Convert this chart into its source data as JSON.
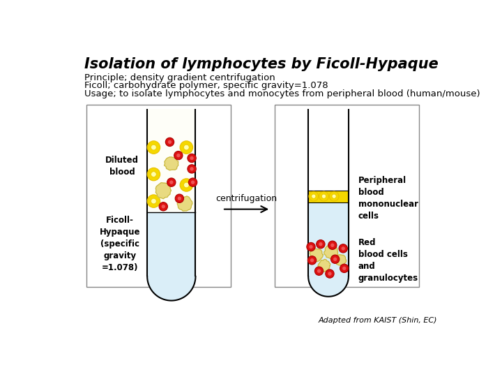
{
  "title": "Isolation of lymphocytes by Ficoll-Hypaque",
  "line1": "Principle; density gradient centrifugation",
  "line2": "Ficoll; carbohydrate polymer, specific gravity=1.078",
  "line3": "Usage; to isolate lymphocytes and monocytes from peripheral blood (human/mouse)",
  "label_left_top": "Diluted\nblood",
  "label_left_bottom": "Ficoll-\nHypaque\n(specific\ngravity\n=1.078)",
  "label_arrow": "centrifugation",
  "label_right_top": "Peripheral\nblood\nmononuclear\ncells",
  "label_right_bottom": "Red\nblood cells\nand\ngranulocytes",
  "footer": "Adapted from KAIST (Shin, EC)",
  "bg_color": "#ffffff",
  "ficoll_color": "#daeef8",
  "cell_yellow": "#f5d800",
  "cell_yellow_dark": "#e8c000",
  "cell_red": "#dd1111",
  "cell_red_dark": "#aa0000",
  "box_color": "#666666",
  "title_fontsize": 15,
  "text_fontsize": 9.5,
  "label_fontsize": 8,
  "arrow_label_fontsize": 9
}
